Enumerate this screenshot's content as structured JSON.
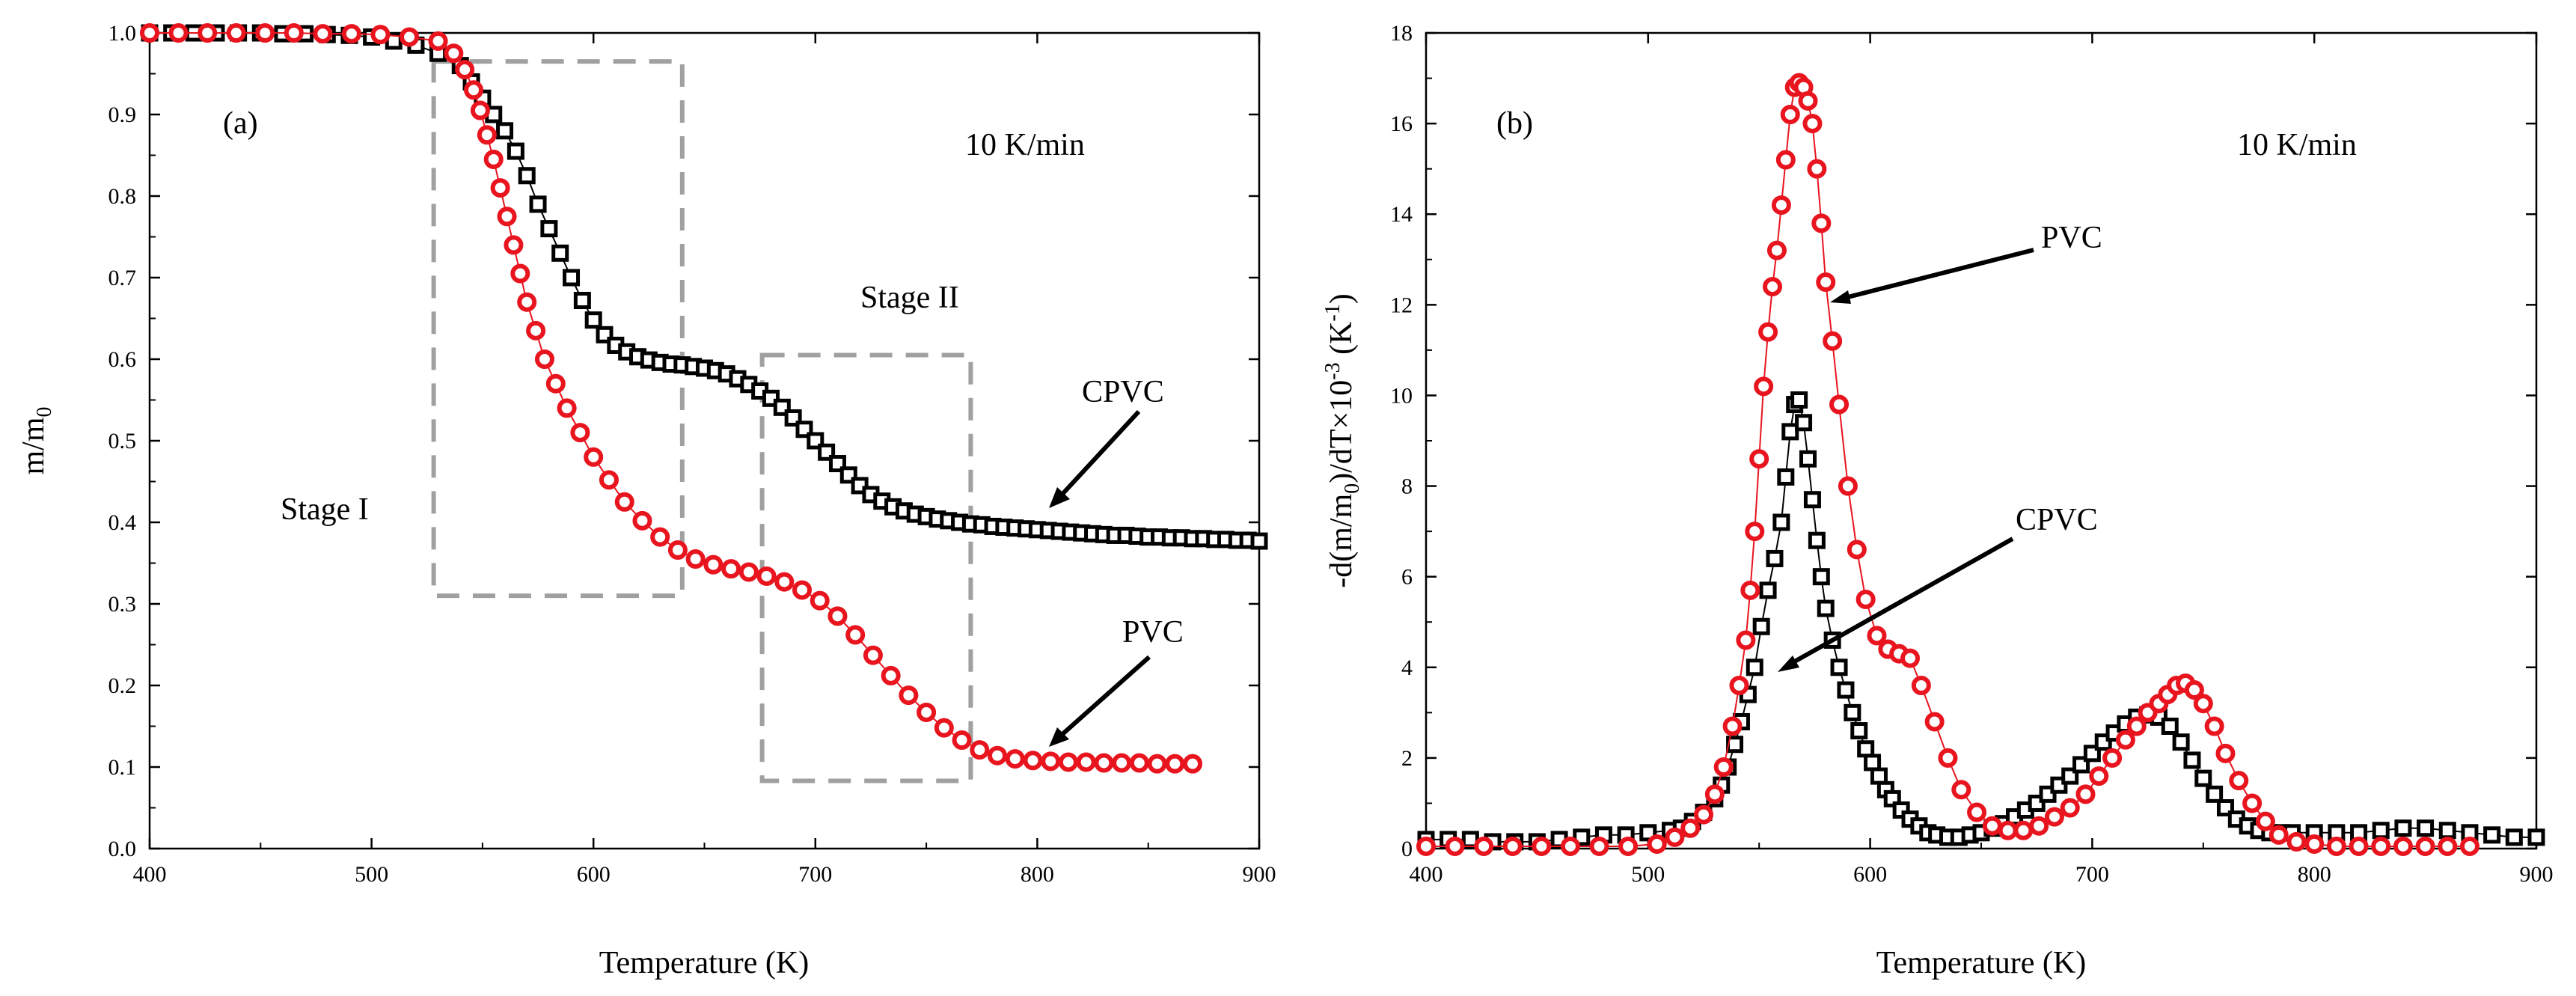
{
  "chart_data": [
    {
      "panel_label": "(a)",
      "type": "scatter",
      "xlabel": "Temperature (K)",
      "ylabel": "m/m0",
      "ylabel_main": "m/m",
      "ylabel_sub": "0",
      "xlim": [
        400,
        900
      ],
      "ylim": [
        0,
        1
      ],
      "xticks": [
        400,
        500,
        600,
        700,
        800,
        900
      ],
      "yticks": [
        0.0,
        0.1,
        0.2,
        0.3,
        0.4,
        0.5,
        0.6,
        0.7,
        0.8,
        0.9,
        1.0
      ],
      "ytick_labels": [
        "0.0",
        "0.1",
        "0.2",
        "0.3",
        "0.4",
        "0.5",
        "0.6",
        "0.7",
        "0.8",
        "0.9",
        "1.0"
      ],
      "rate_label": "10 K/min",
      "stage_labels": [
        "Stage I",
        "Stage II"
      ],
      "stage_boxes": [
        {
          "x0": 528,
          "x1": 640,
          "y0": 0.31,
          "y1": 0.965
        },
        {
          "x0": 676,
          "x1": 770,
          "y0": 0.083,
          "y1": 0.605
        }
      ],
      "series": [
        {
          "name": "CPVC",
          "marker": "square",
          "color": "#000000",
          "label_text": "CPVC",
          "x": [
            400,
            410,
            420,
            430,
            440,
            450,
            460,
            470,
            480,
            490,
            500,
            510,
            520,
            530,
            540,
            545,
            550,
            555,
            560,
            565,
            570,
            575,
            580,
            585,
            590,
            595,
            600,
            605,
            610,
            615,
            620,
            625,
            630,
            635,
            640,
            645,
            650,
            655,
            660,
            665,
            670,
            675,
            680,
            685,
            690,
            695,
            700,
            705,
            710,
            715,
            720,
            725,
            730,
            735,
            740,
            745,
            750,
            755,
            760,
            765,
            770,
            775,
            780,
            785,
            790,
            795,
            800,
            805,
            810,
            815,
            820,
            825,
            830,
            835,
            840,
            845,
            850,
            855,
            860,
            865,
            870,
            875,
            880,
            885,
            890,
            895,
            900
          ],
          "y": [
            1.0,
            1.0,
            1.0,
            1.0,
            1.0,
            1.0,
            0.999,
            0.999,
            0.998,
            0.997,
            0.995,
            0.99,
            0.985,
            0.975,
            0.96,
            0.94,
            0.92,
            0.9,
            0.88,
            0.855,
            0.825,
            0.79,
            0.76,
            0.73,
            0.7,
            0.672,
            0.648,
            0.63,
            0.617,
            0.609,
            0.603,
            0.599,
            0.596,
            0.594,
            0.593,
            0.591,
            0.589,
            0.586,
            0.582,
            0.576,
            0.569,
            0.561,
            0.552,
            0.541,
            0.528,
            0.514,
            0.5,
            0.486,
            0.472,
            0.458,
            0.445,
            0.434,
            0.426,
            0.419,
            0.414,
            0.41,
            0.407,
            0.404,
            0.402,
            0.4,
            0.398,
            0.397,
            0.395,
            0.394,
            0.393,
            0.392,
            0.391,
            0.39,
            0.389,
            0.388,
            0.387,
            0.386,
            0.385,
            0.384,
            0.384,
            0.383,
            0.382,
            0.382,
            0.381,
            0.381,
            0.38,
            0.38,
            0.379,
            0.379,
            0.378,
            0.378,
            0.377
          ]
        },
        {
          "name": "PVC",
          "marker": "circle",
          "color": "#e8141e",
          "label_text": "PVC",
          "x": [
            400,
            413,
            426,
            439,
            452,
            465,
            478,
            491,
            504,
            517,
            530,
            537,
            542,
            546,
            549,
            552,
            555,
            558,
            561,
            564,
            567,
            570,
            574,
            578,
            583,
            588,
            594,
            600,
            607,
            614,
            622,
            630,
            638,
            646,
            654,
            662,
            670,
            678,
            686,
            694,
            702,
            710,
            718,
            726,
            734,
            742,
            750,
            758,
            766,
            774,
            782,
            790,
            798,
            806,
            814,
            822,
            830,
            838,
            846,
            854,
            862,
            870
          ],
          "y": [
            1.0,
            1.0,
            1.0,
            1.0,
            1.0,
            1.0,
            0.999,
            0.999,
            0.998,
            0.995,
            0.99,
            0.975,
            0.955,
            0.93,
            0.905,
            0.875,
            0.845,
            0.81,
            0.775,
            0.74,
            0.705,
            0.67,
            0.635,
            0.6,
            0.57,
            0.54,
            0.51,
            0.48,
            0.452,
            0.425,
            0.402,
            0.382,
            0.366,
            0.355,
            0.348,
            0.343,
            0.339,
            0.334,
            0.327,
            0.317,
            0.304,
            0.285,
            0.262,
            0.237,
            0.212,
            0.188,
            0.167,
            0.148,
            0.133,
            0.121,
            0.114,
            0.11,
            0.108,
            0.107,
            0.106,
            0.106,
            0.105,
            0.105,
            0.105,
            0.104,
            0.104,
            0.104
          ]
        }
      ]
    },
    {
      "panel_label": "(b)",
      "type": "scatter",
      "xlabel": "Temperature (K)",
      "ylabel": "-d(m/m0)/dT×10-3 (K-1)",
      "ylabel_parts": [
        "-d(m/m",
        "0",
        ")/dT×10",
        "-3",
        " (K",
        "-1",
        ")"
      ],
      "xlim": [
        400,
        900
      ],
      "ylim": [
        0,
        18
      ],
      "xticks": [
        400,
        500,
        600,
        700,
        800,
        900
      ],
      "yticks": [
        0,
        2,
        4,
        6,
        8,
        10,
        12,
        14,
        16,
        18
      ],
      "rate_label": "10 K/min",
      "series": [
        {
          "name": "CPVC",
          "marker": "square",
          "color": "#000000",
          "label_text": "CPVC",
          "x": [
            400,
            410,
            420,
            430,
            440,
            450,
            460,
            470,
            480,
            490,
            500,
            510,
            515,
            520,
            525,
            530,
            533,
            536,
            539,
            542,
            545,
            548,
            551,
            554,
            557,
            560,
            562,
            564,
            566,
            568,
            570,
            572,
            574,
            576,
            578,
            580,
            583,
            586,
            589,
            592,
            595,
            598,
            601,
            604,
            607,
            610,
            614,
            618,
            622,
            626,
            630,
            635,
            640,
            645,
            650,
            655,
            660,
            665,
            670,
            675,
            680,
            685,
            690,
            695,
            700,
            705,
            710,
            715,
            720,
            725,
            730,
            735,
            740,
            745,
            750,
            755,
            760,
            765,
            770,
            775,
            780,
            785,
            790,
            800,
            810,
            820,
            830,
            840,
            850,
            860,
            870,
            880,
            890,
            900
          ],
          "y": [
            0.2,
            0.2,
            0.2,
            0.15,
            0.15,
            0.15,
            0.2,
            0.25,
            0.3,
            0.3,
            0.35,
            0.4,
            0.45,
            0.6,
            0.8,
            1.1,
            1.4,
            1.8,
            2.3,
            2.8,
            3.4,
            4.0,
            4.9,
            5.7,
            6.4,
            7.2,
            8.2,
            9.2,
            9.8,
            9.9,
            9.4,
            8.6,
            7.7,
            6.8,
            6.0,
            5.3,
            4.6,
            4.0,
            3.5,
            3.0,
            2.6,
            2.2,
            1.9,
            1.6,
            1.3,
            1.1,
            0.85,
            0.65,
            0.5,
            0.35,
            0.3,
            0.25,
            0.25,
            0.3,
            0.35,
            0.45,
            0.55,
            0.7,
            0.85,
            1.0,
            1.2,
            1.4,
            1.6,
            1.85,
            2.1,
            2.35,
            2.55,
            2.75,
            2.9,
            2.95,
            2.9,
            2.7,
            2.35,
            1.95,
            1.55,
            1.2,
            0.9,
            0.65,
            0.5,
            0.4,
            0.35,
            0.35,
            0.35,
            0.35,
            0.35,
            0.35,
            0.4,
            0.45,
            0.45,
            0.4,
            0.35,
            0.3,
            0.25,
            0.25
          ]
        },
        {
          "name": "PVC",
          "marker": "circle",
          "color": "#e8141e",
          "label_text": "PVC",
          "x": [
            400,
            413,
            426,
            439,
            452,
            465,
            478,
            491,
            504,
            512,
            519,
            525,
            530,
            534,
            538,
            541,
            544,
            546,
            548,
            550,
            552,
            554,
            556,
            558,
            560,
            562,
            564,
            566,
            568,
            570,
            572,
            574,
            576,
            578,
            580,
            583,
            586,
            590,
            594,
            598,
            603,
            608,
            613,
            618,
            623,
            629,
            635,
            641,
            648,
            655,
            662,
            669,
            676,
            683,
            690,
            697,
            703,
            709,
            715,
            720,
            725,
            730,
            734,
            738,
            742,
            746,
            750,
            755,
            760,
            766,
            772,
            778,
            784,
            792,
            800,
            810,
            820,
            830,
            840,
            850,
            860,
            870
          ],
          "y": [
            0.05,
            0.05,
            0.05,
            0.05,
            0.05,
            0.05,
            0.05,
            0.05,
            0.1,
            0.25,
            0.45,
            0.75,
            1.2,
            1.8,
            2.7,
            3.6,
            4.6,
            5.7,
            7.0,
            8.6,
            10.2,
            11.4,
            12.4,
            13.2,
            14.2,
            15.2,
            16.2,
            16.8,
            16.9,
            16.8,
            16.5,
            16.0,
            15.0,
            13.8,
            12.5,
            11.2,
            9.8,
            8.0,
            6.6,
            5.5,
            4.7,
            4.4,
            4.3,
            4.2,
            3.6,
            2.8,
            2.0,
            1.3,
            0.8,
            0.5,
            0.4,
            0.4,
            0.5,
            0.7,
            0.9,
            1.2,
            1.6,
            2.0,
            2.4,
            2.7,
            3.0,
            3.2,
            3.4,
            3.6,
            3.65,
            3.5,
            3.2,
            2.7,
            2.1,
            1.5,
            1.0,
            0.6,
            0.3,
            0.15,
            0.1,
            0.05,
            0.05,
            0.05,
            0.05,
            0.05,
            0.05,
            0.05
          ]
        }
      ]
    }
  ]
}
